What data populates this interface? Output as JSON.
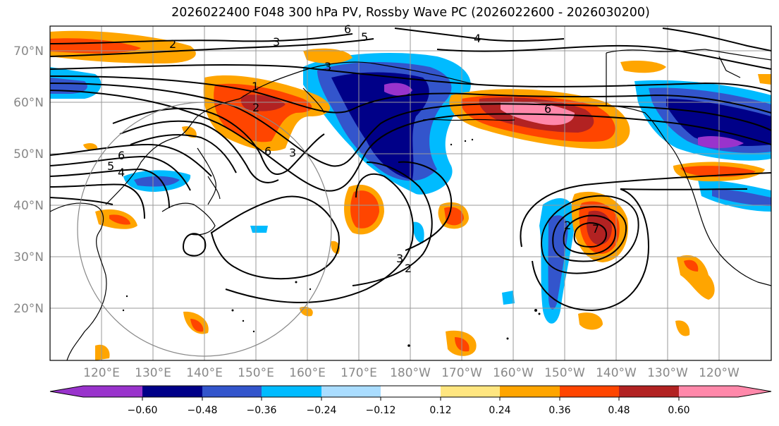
{
  "title": "2026022400 F048 300 hPa PV, Rossby Wave PC (2026022600 - 2026030200)",
  "map": {
    "lat_labels": [
      "70°N",
      "60°N",
      "50°N",
      "40°N",
      "30°N",
      "20°N"
    ],
    "lon_labels": [
      "120°E",
      "130°E",
      "140°E",
      "150°E",
      "160°E",
      "170°E",
      "180°W",
      "170°W",
      "160°W",
      "150°W",
      "140°W",
      "130°W",
      "120°W"
    ],
    "contour_labels": [
      "2",
      "3",
      "6",
      "5",
      "4",
      "3",
      "1",
      "2",
      "6",
      "5",
      "4",
      "6",
      "3",
      "2",
      "3",
      "2",
      "7",
      "6"
    ]
  },
  "colorbar": {
    "ticks": [
      "−0.60",
      "−0.48",
      "−0.36",
      "−0.24",
      "−0.12",
      "0.12",
      "0.24",
      "0.36",
      "0.48",
      "0.60"
    ],
    "colors": {
      "under": "#9933cc",
      "bins": [
        "#9933cc",
        "#000088",
        "#3355cc",
        "#00bbff",
        "#aaddff",
        "#ffffff",
        "#ffe680",
        "#ffa500",
        "#ff4500",
        "#b22222",
        "#ff88aa"
      ],
      "over": "#ff88aa"
    }
  },
  "colors": {
    "grid": "#999999",
    "coast": "#000000",
    "contour": "#000000",
    "circle": "#888888"
  }
}
